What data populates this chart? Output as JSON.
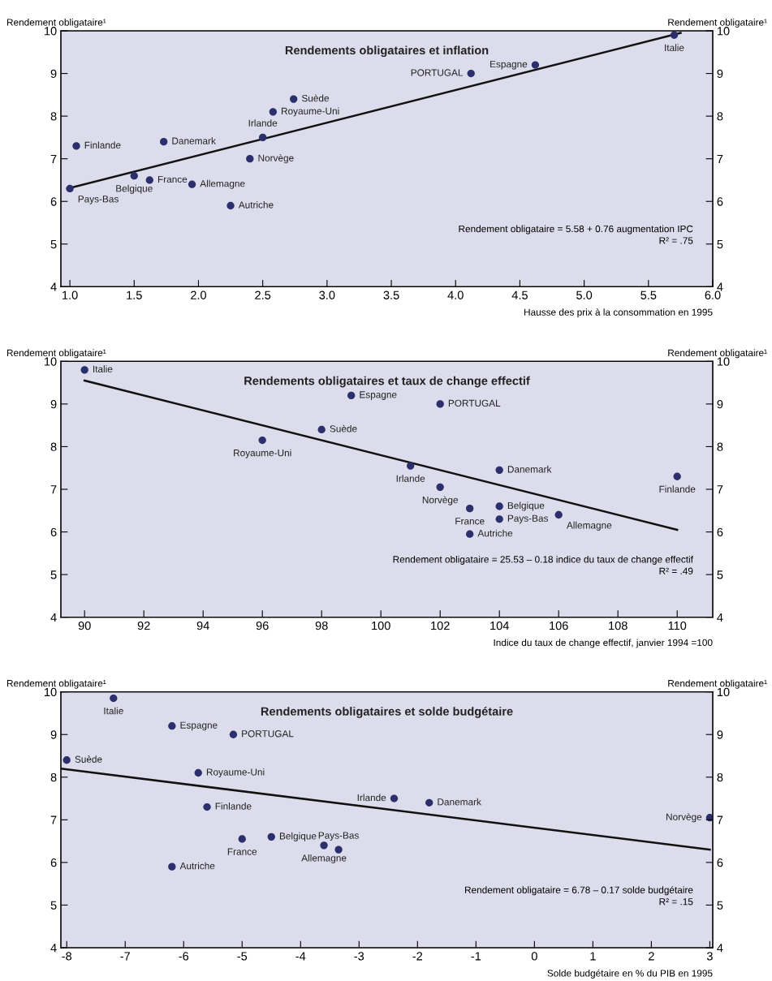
{
  "chart_data": [
    {
      "type": "scatter",
      "title": "Rendements obligataires et inflation",
      "xlabel": "Hausse des prix à la consommation en 1995",
      "ylabel": "Rendement obligataire¹",
      "y2label": "Rendement obligataire¹",
      "xlim": [
        0.93,
        6.0
      ],
      "xticks": [
        {
          "value": 1.0,
          "label": "1.0"
        },
        {
          "value": 1.5,
          "label": "1.5"
        },
        {
          "value": 2.0,
          "label": "2.0"
        },
        {
          "value": 2.5,
          "label": "2.5"
        },
        {
          "value": 3.0,
          "label": "3.0"
        },
        {
          "value": 3.5,
          "label": "3.5"
        },
        {
          "value": 4.0,
          "label": "4.0"
        },
        {
          "value": 4.5,
          "label": "4.5"
        },
        {
          "value": 5.0,
          "label": "5.0"
        },
        {
          "value": 5.5,
          "label": "5.5"
        },
        {
          "value": 6.0,
          "label": "6.0"
        }
      ],
      "ylim": [
        4,
        10
      ],
      "yticks": [
        4,
        5,
        6,
        7,
        8,
        9,
        10
      ],
      "y2lim": [
        4,
        10
      ],
      "y2ticks": [
        4,
        5,
        6,
        7,
        8,
        9,
        10
      ],
      "grid": false,
      "marker": "circle",
      "series": [
        {
          "color": "#2b2f6b",
          "x": [
            1.0,
            1.05,
            1.5,
            1.62,
            1.73,
            1.95,
            2.25,
            2.4,
            2.5,
            2.58,
            2.74,
            4.12,
            4.62,
            5.7
          ],
          "values": [
            6.3,
            7.3,
            6.6,
            6.5,
            7.4,
            6.4,
            5.9,
            7.0,
            7.5,
            8.1,
            8.4,
            9.0,
            9.2,
            9.9
          ]
        },
        {
          "type": "line",
          "marker": "none",
          "color": "#111111",
          "x": [
            0.98,
            5.75
          ],
          "values": [
            6.3,
            9.95
          ]
        }
      ],
      "annotations": [
        {
          "text": "Pays-Bas",
          "x": 1.0,
          "y": 6.3
        },
        {
          "text": "Finlande",
          "x": 1.05,
          "y": 7.3
        },
        {
          "text": "Belgique",
          "x": 1.5,
          "y": 6.6
        },
        {
          "text": "France",
          "x": 1.62,
          "y": 6.5
        },
        {
          "text": "Danemark",
          "x": 1.73,
          "y": 7.4
        },
        {
          "text": "Allemagne",
          "x": 1.95,
          "y": 6.4
        },
        {
          "text": "Autriche",
          "x": 2.25,
          "y": 5.9
        },
        {
          "text": "Norvège",
          "x": 2.4,
          "y": 7.0
        },
        {
          "text": "Irlande",
          "x": 2.5,
          "y": 7.5
        },
        {
          "text": "Royaume-Uni",
          "x": 2.58,
          "y": 8.1
        },
        {
          "text": "Suède",
          "x": 2.74,
          "y": 8.4
        },
        {
          "text": "PORTUGAL",
          "x": 4.12,
          "y": 9.0
        },
        {
          "text": "Espagne",
          "x": 4.62,
          "y": 9.2
        },
        {
          "text": "Italie",
          "x": 5.7,
          "y": 9.9
        },
        "Rendement obligataire = 5.58 + 0.76 augmentation IPC",
        "R² = .75"
      ]
    },
    {
      "type": "scatter",
      "title": "Rendements obligataires et taux de change effectif",
      "xlabel": "Indice du taux de change effectif, janvier 1994 =100",
      "ylabel": "Rendement obligataire¹",
      "y2label": "Rendement obligataire¹",
      "xlim": [
        89.2,
        111.2
      ],
      "xticks": [
        90,
        92,
        94,
        96,
        98,
        100,
        102,
        104,
        106,
        108,
        110
      ],
      "ylim": [
        4,
        10
      ],
      "yticks": [
        4,
        5,
        6,
        7,
        8,
        9,
        10
      ],
      "y2lim": [
        4,
        10
      ],
      "y2ticks": [
        4,
        5,
        6,
        7,
        8,
        9,
        10
      ],
      "grid": false,
      "marker": "circle",
      "series": [
        {
          "color": "#2b2f6b",
          "x": [
            90,
            96,
            98,
            99,
            101,
            102,
            102,
            103,
            103,
            104,
            104,
            104,
            106,
            110
          ],
          "values": [
            9.8,
            8.15,
            8.4,
            9.2,
            7.55,
            7.05,
            9.0,
            6.55,
            5.95,
            7.45,
            6.6,
            6.3,
            6.4,
            7.3
          ]
        },
        {
          "type": "line",
          "marker": "none",
          "color": "#111111",
          "x": [
            90,
            110
          ],
          "values": [
            9.55,
            6.05
          ]
        }
      ],
      "annotations": [
        {
          "text": "Italie",
          "x": 90,
          "y": 9.8
        },
        {
          "text": "Royaume-Uni",
          "x": 96,
          "y": 8.15
        },
        {
          "text": "Suède",
          "x": 98,
          "y": 8.4
        },
        {
          "text": "Espagne",
          "x": 99,
          "y": 9.2
        },
        {
          "text": "Irlande",
          "x": 101,
          "y": 7.55
        },
        {
          "text": "Norvège",
          "x": 102,
          "y": 7.05
        },
        {
          "text": "PORTUGAL",
          "x": 102,
          "y": 9.0
        },
        {
          "text": "France",
          "x": 103,
          "y": 6.55
        },
        {
          "text": "Autriche",
          "x": 103,
          "y": 5.95
        },
        {
          "text": "Danemark",
          "x": 104,
          "y": 7.45
        },
        {
          "text": "Belgique",
          "x": 104,
          "y": 6.6
        },
        {
          "text": "Pays-Bas",
          "x": 104,
          "y": 6.3
        },
        {
          "text": "Allemagne",
          "x": 106,
          "y": 6.4
        },
        {
          "text": "Finlande",
          "x": 110,
          "y": 7.3
        },
        "Rendement obligataire = 25.53 – 0.18 indice du taux de change effectif",
        "R² = .49"
      ]
    },
    {
      "type": "scatter",
      "title": "Rendements obligataires et solde budgétaire",
      "xlabel": "Solde budgétaire en % du PIB en 1995",
      "ylabel": "Rendement obligataire¹",
      "y2label": "Rendement obligataire¹",
      "xlim": [
        -8.1,
        3.05
      ],
      "xticks": [
        -8,
        -7,
        -6,
        -5,
        -4,
        -3,
        -2,
        -1,
        0,
        1,
        2,
        3
      ],
      "ylim": [
        4,
        10
      ],
      "yticks": [
        4,
        5,
        6,
        7,
        8,
        9,
        10
      ],
      "y2lim": [
        4,
        10
      ],
      "y2ticks": [
        4,
        5,
        6,
        7,
        8,
        9,
        10
      ],
      "grid": false,
      "marker": "circle",
      "series": [
        {
          "color": "#2b2f6b",
          "x": [
            -8.0,
            -7.2,
            -6.2,
            -6.2,
            -5.75,
            -5.6,
            -5.15,
            -5.0,
            -4.5,
            -3.6,
            -3.35,
            -2.4,
            -1.8,
            3.0
          ],
          "values": [
            8.4,
            9.85,
            9.2,
            5.9,
            8.1,
            7.3,
            9.0,
            6.55,
            6.6,
            6.4,
            6.3,
            7.5,
            7.4,
            7.05
          ]
        },
        {
          "type": "line",
          "marker": "none",
          "color": "#111111",
          "x": [
            -8.1,
            3.0
          ],
          "values": [
            8.2,
            6.3
          ]
        }
      ],
      "annotations": [
        {
          "text": "Suède",
          "x": -8.0,
          "y": 8.4
        },
        {
          "text": "Italie",
          "x": -7.2,
          "y": 9.85
        },
        {
          "text": "Espagne",
          "x": -6.2,
          "y": 9.2
        },
        {
          "text": "Autriche",
          "x": -6.2,
          "y": 5.9
        },
        {
          "text": "Royaume-Uni",
          "x": -5.75,
          "y": 8.1
        },
        {
          "text": "Finlande",
          "x": -5.6,
          "y": 7.3
        },
        {
          "text": "PORTUGAL",
          "x": -5.15,
          "y": 9.0
        },
        {
          "text": "France",
          "x": -5.0,
          "y": 6.55
        },
        {
          "text": "Belgique",
          "x": -4.5,
          "y": 6.6
        },
        {
          "text": "Allemagne",
          "x": -3.6,
          "y": 6.4
        },
        {
          "text": "Pays-Bas",
          "x": -3.35,
          "y": 6.3
        },
        {
          "text": "Irlande",
          "x": -2.4,
          "y": 7.5
        },
        {
          "text": "Danemark",
          "x": -1.8,
          "y": 7.4
        },
        {
          "text": "Norvège",
          "x": 3.0,
          "y": 7.05
        },
        "Rendement obligataire = 6.78 – 0.17 solde budgétaire",
        "R² = .15"
      ]
    }
  ]
}
